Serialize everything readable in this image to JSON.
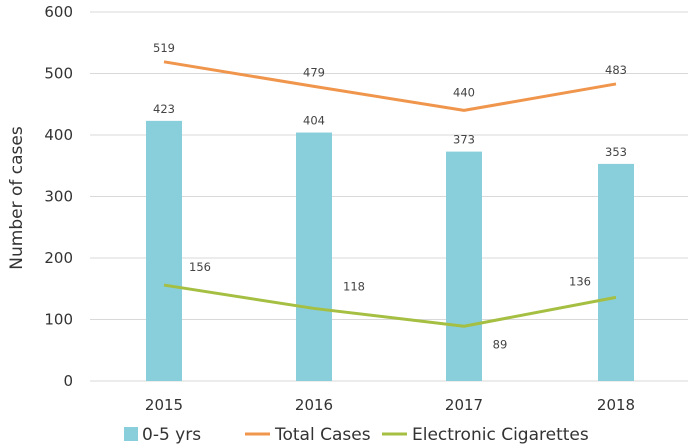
{
  "chart_data": {
    "type": "bar",
    "title": "",
    "xlabel": "",
    "ylabel": "Number of cases",
    "categories": [
      "2015",
      "2016",
      "2017",
      "2018"
    ],
    "ylim": [
      0,
      600
    ],
    "yticks": [
      "0",
      "100",
      "200",
      "300",
      "400",
      "500",
      "600"
    ],
    "grid": true,
    "legend": "bottom",
    "series": [
      {
        "name": "0-5 yrs",
        "kind": "bar",
        "color": "#89cedb",
        "values": [
          423,
          404,
          373,
          353
        ]
      },
      {
        "name": "Total Cases",
        "kind": "line",
        "color": "#f0954c",
        "values": [
          519,
          479,
          440,
          483
        ]
      },
      {
        "name": "Electronic Cigarettes",
        "kind": "line",
        "color": "#a5bf42",
        "values": [
          156,
          118,
          89,
          136
        ]
      }
    ]
  }
}
